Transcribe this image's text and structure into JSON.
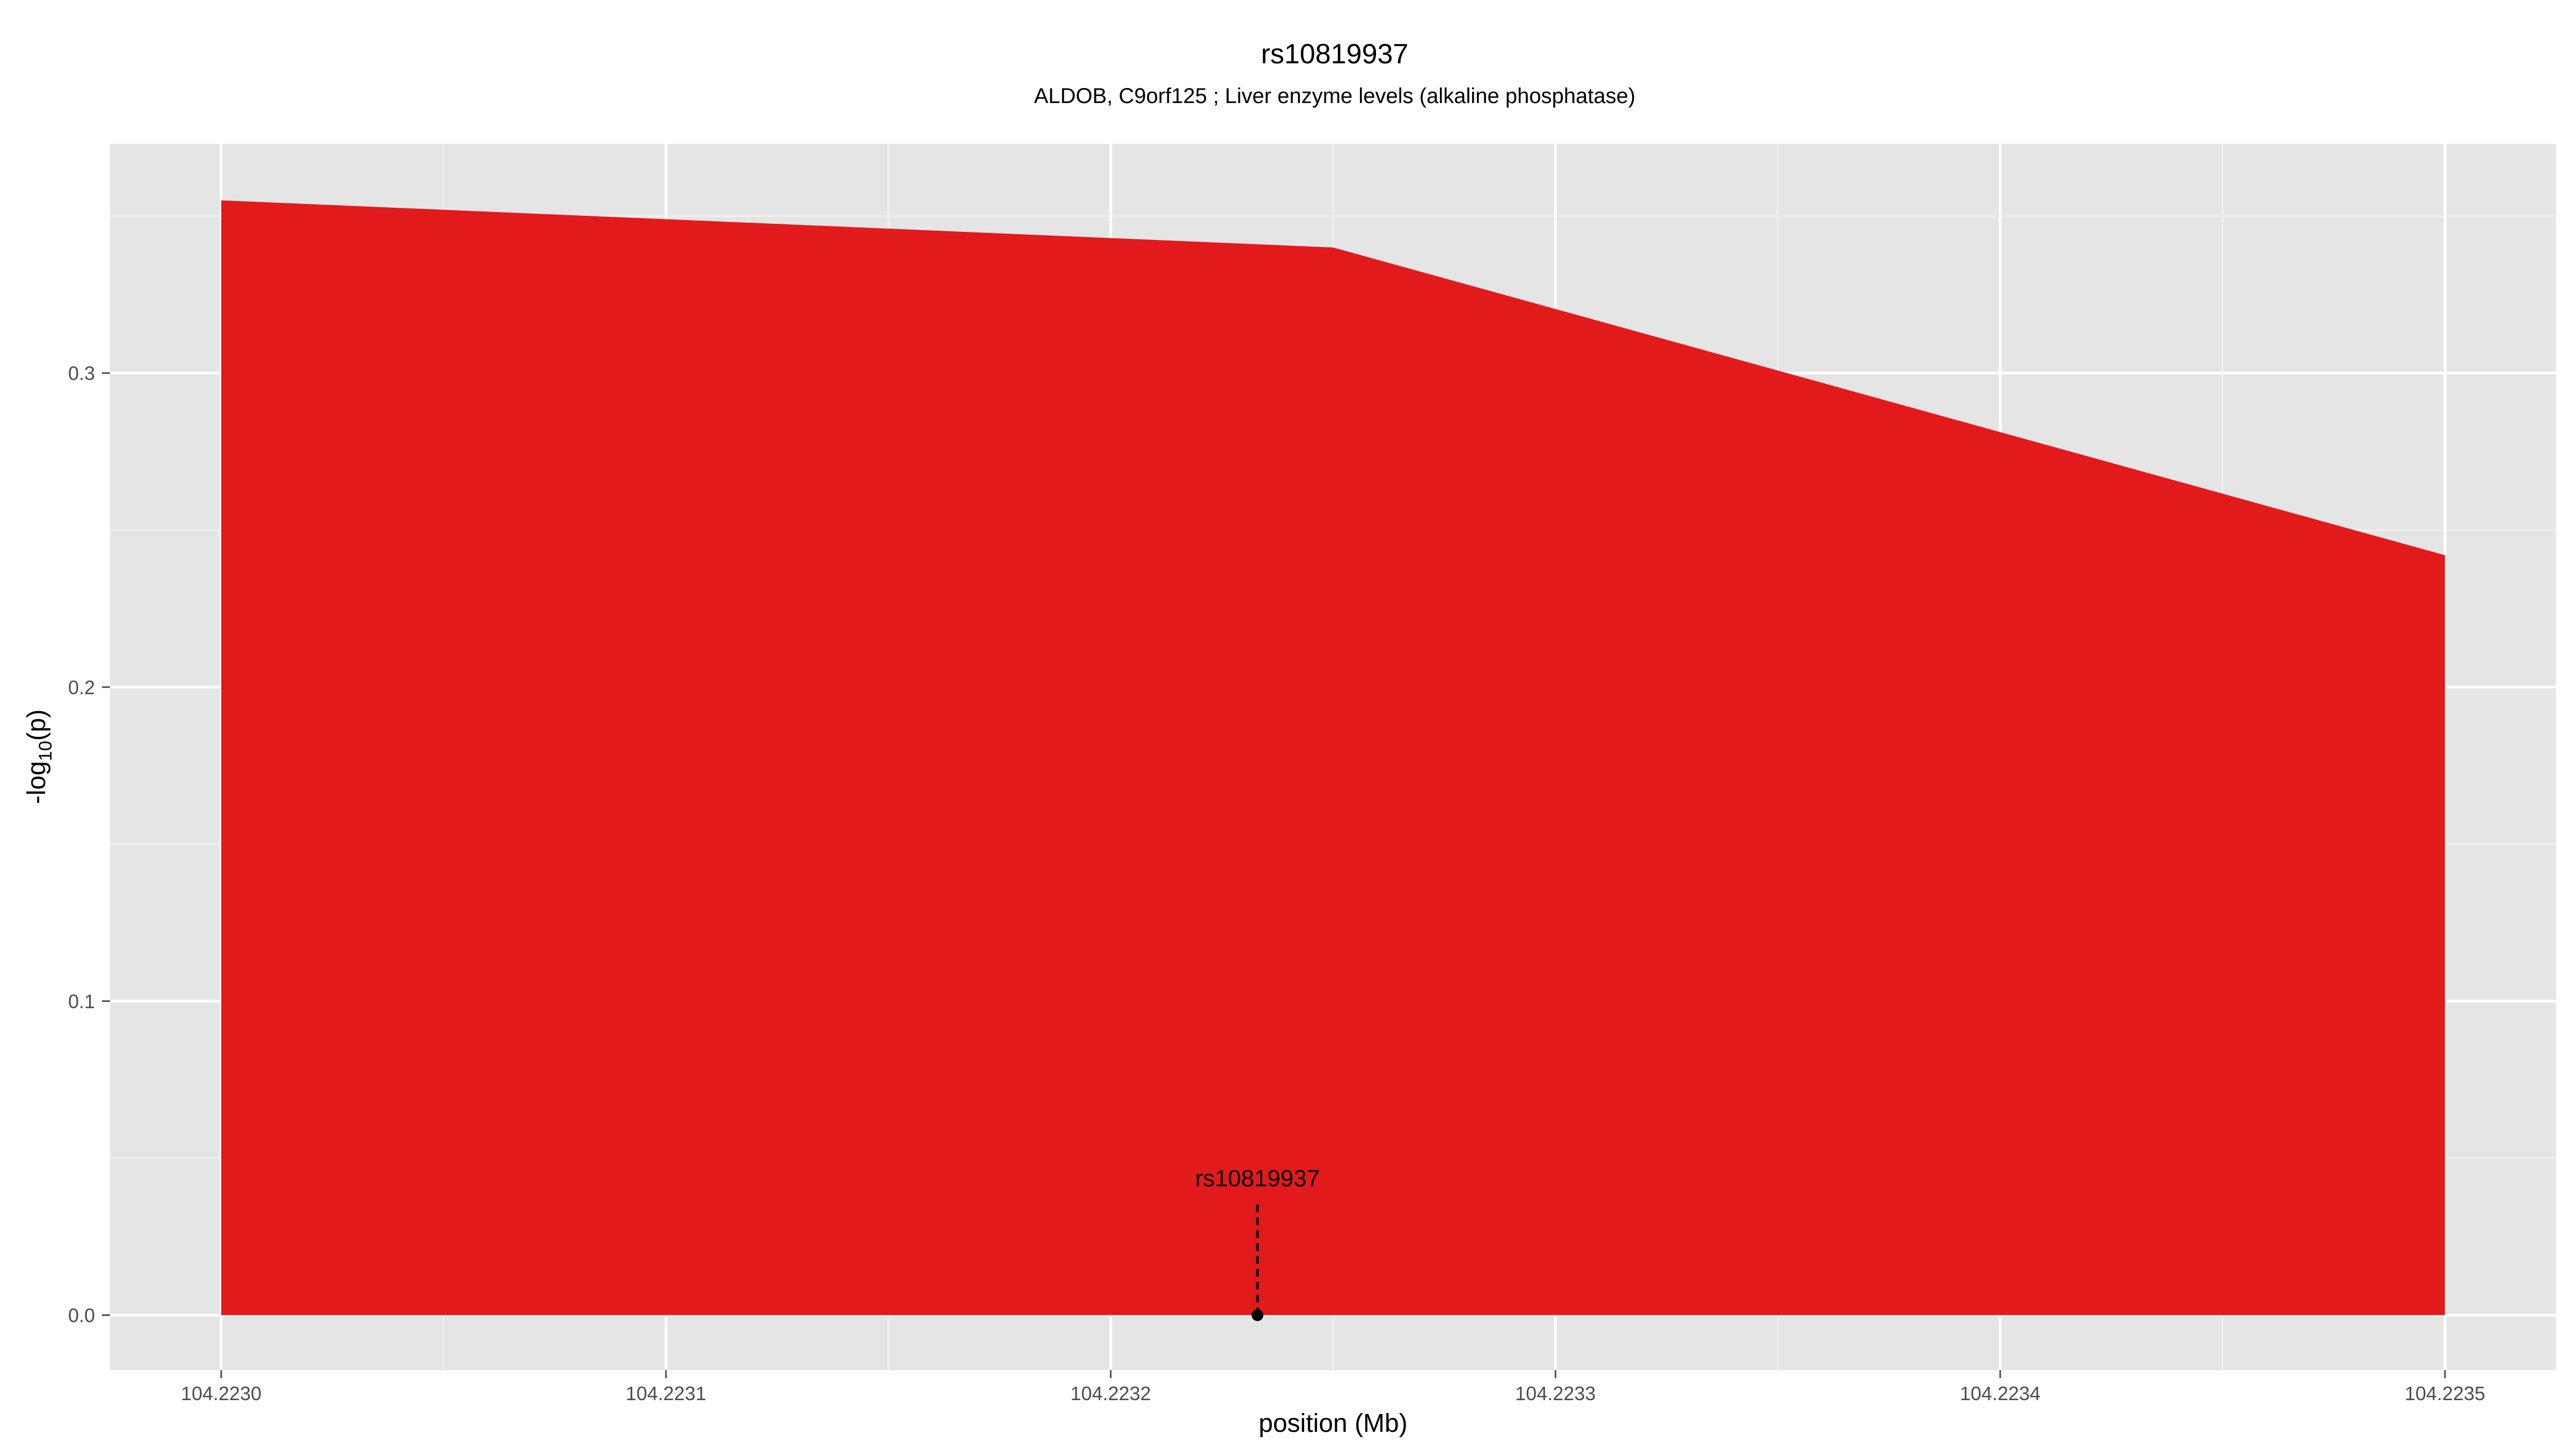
{
  "chart_data": {
    "type": "area",
    "title": "rs10819937",
    "subtitle": "ALDOB, C9orf125 ; Liver enzyme levels (alkaline phosphatase)",
    "xlabel": "position (Mb)",
    "ylabel_main": "-log",
    "ylabel_sub": "10",
    "ylabel_tail": "(p)",
    "xlim": [
      104.222975,
      104.223525
    ],
    "ylim": [
      -0.0175,
      0.373
    ],
    "x_ticks": [
      104.223,
      104.2231,
      104.2232,
      104.2233,
      104.2234,
      104.2235
    ],
    "x_tick_labels": [
      "104.2230",
      "104.2231",
      "104.2232",
      "104.2233",
      "104.2234",
      "104.2235"
    ],
    "y_ticks": [
      0.0,
      0.1,
      0.2,
      0.3
    ],
    "y_tick_labels": [
      "0.0",
      "0.1",
      "0.2",
      "0.3"
    ],
    "grid": true,
    "fill_color": "#e31a1c",
    "panel_color": "#e5e5e5",
    "series": [
      {
        "x": [
          104.223,
          104.22325,
          104.2235
        ],
        "y": [
          0.355,
          0.34,
          0.242
        ]
      }
    ],
    "annotations": [
      {
        "label": "rs10819937",
        "x": 104.223233,
        "y": 0.0
      }
    ]
  }
}
